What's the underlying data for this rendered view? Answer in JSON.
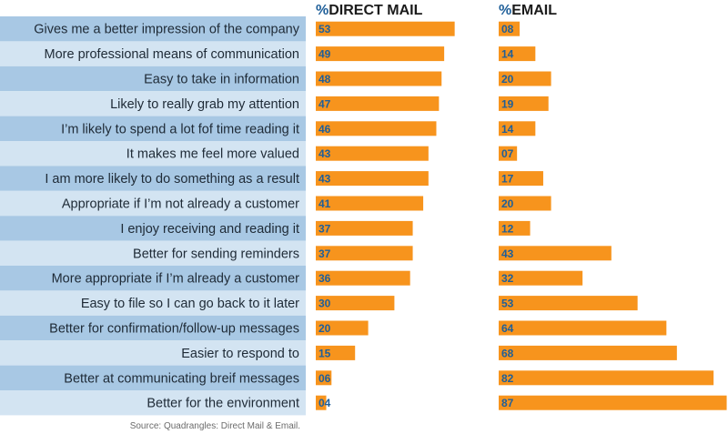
{
  "chart_data": {
    "type": "bar",
    "orientation": "horizontal",
    "categories": [
      "Gives me a better impression of the company",
      "More professional means of communication",
      "Easy to take in information",
      "Likely to really grab my attention",
      "I’m likely to spend a lot fof time reading it",
      "It makes me feel more valued",
      "I am more likely to do something as a result",
      "Appropriate if I’m not already a customer",
      "I enjoy receiving and reading it",
      "Better for sending reminders",
      "More appropriate if I’m already a customer",
      "Easy to file so I can go back to it later",
      "Better for confirmation/follow-up messages",
      "Easier to respond to",
      "Better at communicating breif messages",
      "Better for the environment"
    ],
    "series": [
      {
        "name": "DIRECT MAIL",
        "values": [
          53,
          49,
          48,
          47,
          46,
          43,
          43,
          41,
          37,
          37,
          36,
          30,
          20,
          15,
          6,
          4
        ],
        "labels": [
          "53",
          "49",
          "48",
          "47",
          "46",
          "43",
          "43",
          "41",
          "37",
          "37",
          "36",
          "30",
          "20",
          "15",
          "06",
          "04"
        ]
      },
      {
        "name": "EMAIL",
        "values": [
          8,
          14,
          20,
          19,
          14,
          7,
          17,
          20,
          12,
          43,
          32,
          53,
          64,
          68,
          82,
          87
        ],
        "labels": [
          "08",
          "14",
          "20",
          "19",
          "14",
          "07",
          "17",
          "20",
          "12",
          "43",
          "32",
          "53",
          "64",
          "68",
          "82",
          "87"
        ]
      }
    ],
    "header_prefix": "%",
    "source": "Source: Quadrangles: Direct Mail & Email.",
    "colors": {
      "bar": "#f7941d",
      "value_text": "#1f5f99",
      "row_dark": "#a8c8e4",
      "row_light": "#d3e4f2",
      "header_prefix": "#1f5f99"
    }
  }
}
